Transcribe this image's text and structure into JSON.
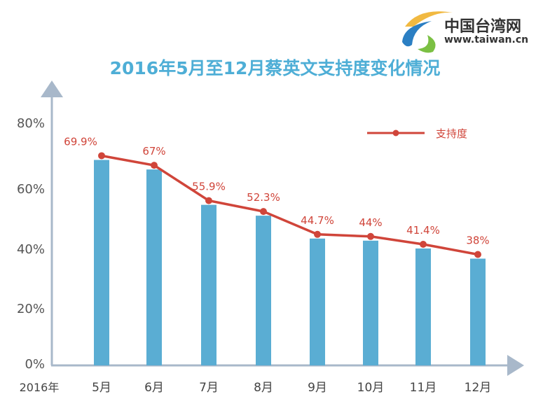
{
  "logo": {
    "name": "中国台湾网",
    "url": "www.taiwan.cn"
  },
  "chart_data": {
    "type": "bar",
    "title": "2016年5月至12月蔡英文支持度变化情况",
    "xlabel": "2016年",
    "ylabel": "",
    "categories": [
      "5月",
      "6月",
      "7月",
      "8月",
      "9月",
      "10月",
      "11月",
      "12月"
    ],
    "series": [
      {
        "name": "支持度",
        "values": [
          69.9,
          67,
          55.9,
          52.3,
          44.7,
          44,
          41.4,
          38
        ],
        "labels": [
          "69.9%",
          "67%",
          "55.9%",
          "52.3%",
          "44.7%",
          "44%",
          "41.4%",
          "38%"
        ]
      }
    ],
    "yticks": [
      "0%",
      "20%",
      "40%",
      "60%",
      "80%"
    ],
    "ylim": [
      0,
      80
    ],
    "legend": "top-right",
    "colors": {
      "bar": "#5aadd3",
      "line": "#d0453a",
      "axis": "#a8b8ca",
      "title": "#4eaed6"
    }
  }
}
